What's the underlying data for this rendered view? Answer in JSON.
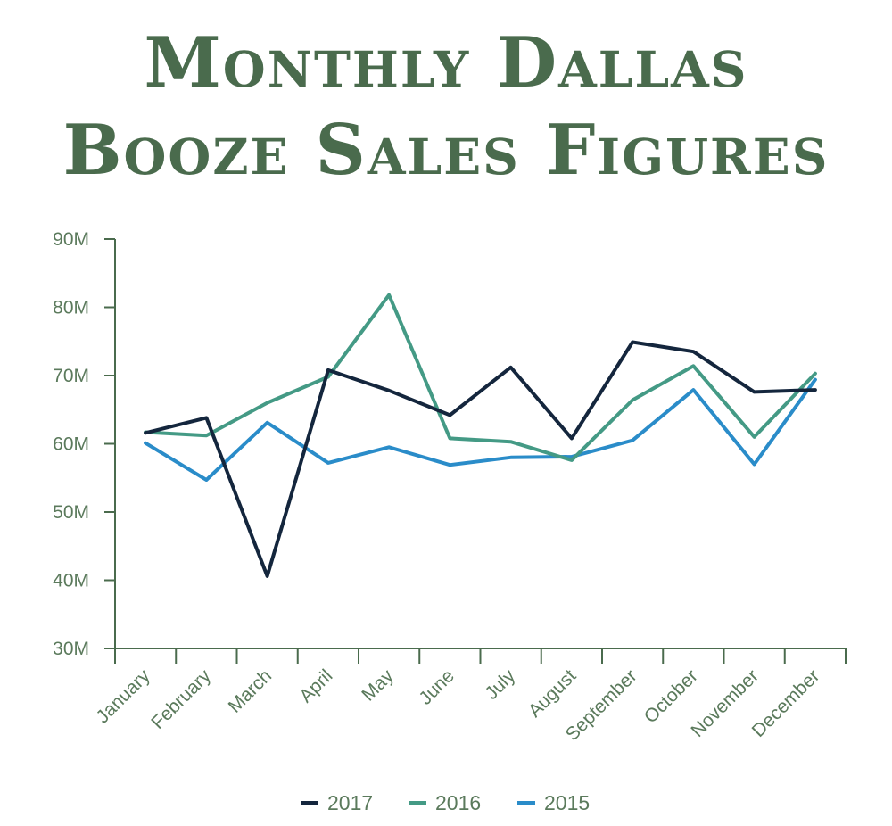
{
  "title_line1": "Monthly Dallas",
  "title_line2": "Booze Sales Figures",
  "colors": {
    "axis": "#4a6b4d",
    "text": "#5b7a5c",
    "title": "#4a6b4d"
  },
  "chart_data": {
    "type": "line",
    "title": "Monthly Dallas Booze Sales Figures",
    "xlabel": "",
    "ylabel": "",
    "categories": [
      "January",
      "February",
      "March",
      "April",
      "May",
      "June",
      "July",
      "August",
      "September",
      "October",
      "November",
      "December"
    ],
    "ylim": [
      30,
      90
    ],
    "yticks": [
      30,
      40,
      50,
      60,
      70,
      80,
      90
    ],
    "ytick_labels": [
      "30M",
      "40M",
      "50M",
      "60M",
      "70M",
      "80M",
      "90M"
    ],
    "grid": false,
    "legend_position": "bottom",
    "series": [
      {
        "name": "2017",
        "color": "#14263d",
        "values": [
          61.6,
          63.8,
          40.6,
          70.8,
          67.8,
          64.2,
          71.2,
          60.8,
          74.9,
          73.5,
          67.6,
          67.9
        ]
      },
      {
        "name": "2016",
        "color": "#449a85",
        "values": [
          61.7,
          61.2,
          66.0,
          69.8,
          81.8,
          60.8,
          60.3,
          57.6,
          66.4,
          71.4,
          61.0,
          70.3
        ]
      },
      {
        "name": "2015",
        "color": "#2a8cc9",
        "values": [
          60.1,
          54.7,
          63.1,
          57.2,
          59.5,
          56.9,
          58.0,
          58.1,
          60.5,
          67.9,
          57.0,
          69.4
        ]
      }
    ]
  }
}
